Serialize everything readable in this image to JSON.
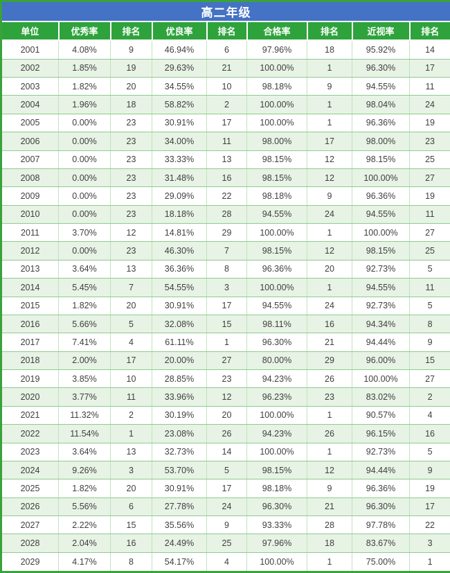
{
  "chart_data": {
    "type": "table",
    "title": "高二年级",
    "columns": [
      "单位",
      "优秀率",
      "排名",
      "优良率",
      "排名",
      "合格率",
      "排名",
      "近视率",
      "排名"
    ],
    "rows": [
      [
        "2001",
        "4.08%",
        "9",
        "46.94%",
        "6",
        "97.96%",
        "18",
        "95.92%",
        "14"
      ],
      [
        "2002",
        "1.85%",
        "19",
        "29.63%",
        "21",
        "100.00%",
        "1",
        "96.30%",
        "17"
      ],
      [
        "2003",
        "1.82%",
        "20",
        "34.55%",
        "10",
        "98.18%",
        "9",
        "94.55%",
        "11"
      ],
      [
        "2004",
        "1.96%",
        "18",
        "58.82%",
        "2",
        "100.00%",
        "1",
        "98.04%",
        "24"
      ],
      [
        "2005",
        "0.00%",
        "23",
        "30.91%",
        "17",
        "100.00%",
        "1",
        "96.36%",
        "19"
      ],
      [
        "2006",
        "0.00%",
        "23",
        "34.00%",
        "11",
        "98.00%",
        "17",
        "98.00%",
        "23"
      ],
      [
        "2007",
        "0.00%",
        "23",
        "33.33%",
        "13",
        "98.15%",
        "12",
        "98.15%",
        "25"
      ],
      [
        "2008",
        "0.00%",
        "23",
        "31.48%",
        "16",
        "98.15%",
        "12",
        "100.00%",
        "27"
      ],
      [
        "2009",
        "0.00%",
        "23",
        "29.09%",
        "22",
        "98.18%",
        "9",
        "96.36%",
        "19"
      ],
      [
        "2010",
        "0.00%",
        "23",
        "18.18%",
        "28",
        "94.55%",
        "24",
        "94.55%",
        "11"
      ],
      [
        "2011",
        "3.70%",
        "12",
        "14.81%",
        "29",
        "100.00%",
        "1",
        "100.00%",
        "27"
      ],
      [
        "2012",
        "0.00%",
        "23",
        "46.30%",
        "7",
        "98.15%",
        "12",
        "98.15%",
        "25"
      ],
      [
        "2013",
        "3.64%",
        "13",
        "36.36%",
        "8",
        "96.36%",
        "20",
        "92.73%",
        "5"
      ],
      [
        "2014",
        "5.45%",
        "7",
        "54.55%",
        "3",
        "100.00%",
        "1",
        "94.55%",
        "11"
      ],
      [
        "2015",
        "1.82%",
        "20",
        "30.91%",
        "17",
        "94.55%",
        "24",
        "92.73%",
        "5"
      ],
      [
        "2016",
        "5.66%",
        "5",
        "32.08%",
        "15",
        "98.11%",
        "16",
        "94.34%",
        "8"
      ],
      [
        "2017",
        "7.41%",
        "4",
        "61.11%",
        "1",
        "96.30%",
        "21",
        "94.44%",
        "9"
      ],
      [
        "2018",
        "2.00%",
        "17",
        "20.00%",
        "27",
        "80.00%",
        "29",
        "96.00%",
        "15"
      ],
      [
        "2019",
        "3.85%",
        "10",
        "28.85%",
        "23",
        "94.23%",
        "26",
        "100.00%",
        "27"
      ],
      [
        "2020",
        "3.77%",
        "11",
        "33.96%",
        "12",
        "96.23%",
        "23",
        "83.02%",
        "2"
      ],
      [
        "2021",
        "11.32%",
        "2",
        "30.19%",
        "20",
        "100.00%",
        "1",
        "90.57%",
        "4"
      ],
      [
        "2022",
        "11.54%",
        "1",
        "23.08%",
        "26",
        "94.23%",
        "26",
        "96.15%",
        "16"
      ],
      [
        "2023",
        "3.64%",
        "13",
        "32.73%",
        "14",
        "100.00%",
        "1",
        "92.73%",
        "5"
      ],
      [
        "2024",
        "9.26%",
        "3",
        "53.70%",
        "5",
        "98.15%",
        "12",
        "94.44%",
        "9"
      ],
      [
        "2025",
        "1.82%",
        "20",
        "30.91%",
        "17",
        "98.18%",
        "9",
        "96.36%",
        "19"
      ],
      [
        "2026",
        "5.56%",
        "6",
        "27.78%",
        "24",
        "96.30%",
        "21",
        "96.30%",
        "17"
      ],
      [
        "2027",
        "2.22%",
        "15",
        "35.56%",
        "9",
        "93.33%",
        "28",
        "97.78%",
        "22"
      ],
      [
        "2028",
        "2.04%",
        "16",
        "24.49%",
        "25",
        "97.96%",
        "18",
        "83.67%",
        "3"
      ],
      [
        "2029",
        "4.17%",
        "8",
        "54.17%",
        "4",
        "100.00%",
        "1",
        "75.00%",
        "1"
      ]
    ]
  },
  "colors": {
    "title_bg": "#4472c4",
    "header_bg": "#2ea33c",
    "stripe_bg": "#e7f3e4",
    "grid_green": "#8fcb8f",
    "grid_light": "#bfe2bf",
    "frame_green": "#3aa23a",
    "text": "#3f3f3f",
    "header_text": "#ffffff"
  }
}
